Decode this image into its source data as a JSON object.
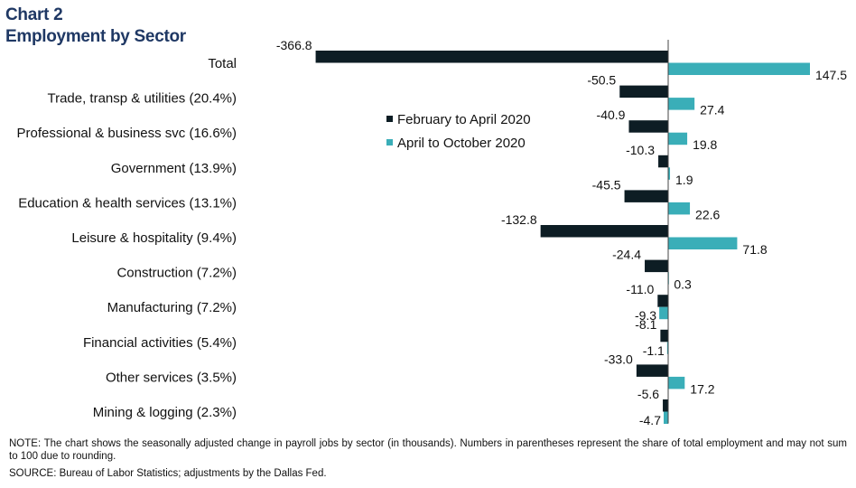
{
  "title_line1": "Chart 2",
  "title_line2": "Employment by Sector",
  "note": "NOTE: The chart shows the seasonally adjusted change in payroll jobs by sector (in thousands). Numbers in parentheses represent the share of total employment and may not sum to 100 due to rounding.",
  "source": "SOURCE: Bureau of Labor Statistics; adjustments by the Dallas Fed.",
  "colors": {
    "series1": "#0d1d24",
    "series2": "#3aaeb8",
    "title": "#1f3864"
  },
  "chart_data": {
    "type": "bar",
    "orientation": "horizontal",
    "title": "Employment by Sector",
    "categories": [
      "Total",
      "Trade, transp & utilities (20.4%)",
      "Professional & business svc (16.6%)",
      "Government (13.9%)",
      "Education & health services (13.1%)",
      "Leisure & hospitality (9.4%)",
      "Construction (7.2%)",
      "Manufacturing (7.2%)",
      "Financial activities (5.4%)",
      "Other services (3.5%)",
      "Mining & logging (2.3%)"
    ],
    "series": [
      {
        "name": "February to April 2020",
        "values": [
          -366.8,
          -50.5,
          -40.9,
          -10.3,
          -45.5,
          -132.8,
          -24.4,
          -11.0,
          -8.1,
          -33.0,
          -5.6
        ]
      },
      {
        "name": "April to October 2020",
        "values": [
          147.5,
          27.4,
          19.8,
          1.9,
          22.6,
          71.8,
          0.3,
          -9.3,
          -1.1,
          17.2,
          -4.7
        ]
      }
    ],
    "data_labels": [
      [
        "-366.8",
        "-50.5",
        "-40.9",
        "-10.3",
        "-45.5",
        "-132.8",
        "-24.4",
        "-11.0",
        "-8.1",
        "-33.0",
        "-5.6"
      ],
      [
        "147.5",
        "27.4",
        "19.8",
        "1.9",
        "22.6",
        "71.8",
        "0.3",
        "-9.3",
        "-1.1",
        "17.2",
        "-4.7"
      ]
    ],
    "legend_position": "middle-left",
    "grid": false
  }
}
